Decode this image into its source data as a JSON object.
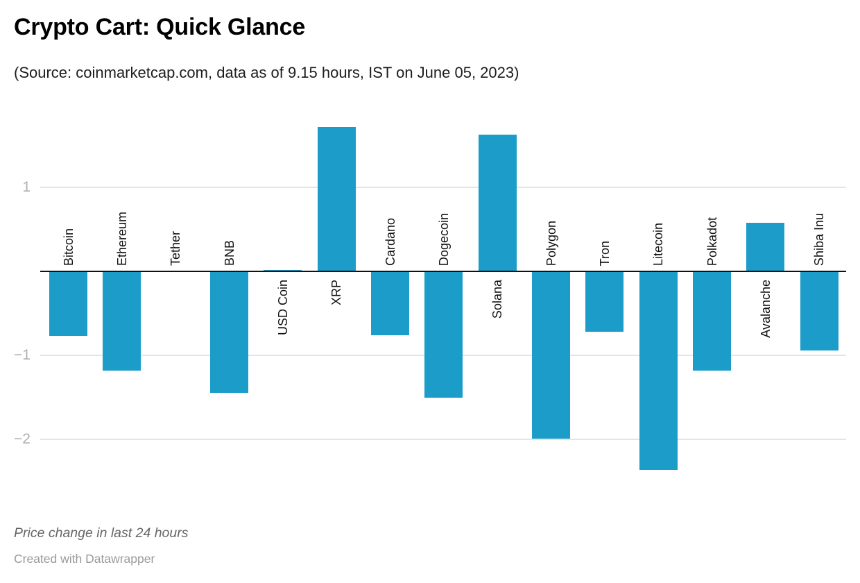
{
  "header": {
    "title": "Crypto Cart: Quick Glance",
    "subtitle": "(Source: coinmarketcap.com, data as of 9.15 hours, IST on June 05, 2023)"
  },
  "footer": {
    "note": "Price change in last 24 hours",
    "credit": "Created with Datawrapper"
  },
  "colors": {
    "bar": "#1c9dc9",
    "baseline": "#111111",
    "gridline": "#e4e4e4",
    "tick_label": "#b0b0b0",
    "bar_label": "#111111"
  },
  "chart_data": {
    "type": "bar",
    "title": "Crypto Cart: Quick Glance",
    "subtitle": "(Source: coinmarketcap.com, data as of 9.15 hours, IST on June 05, 2023)",
    "note": "Price change in last 24 hours",
    "credit": "Created with Datawrapper",
    "categories": [
      "Bitcoin",
      "Ethereum",
      "Tether",
      "BNB",
      "USD Coin",
      "XRP",
      "Cardano",
      "Dogecoin",
      "Solana",
      "Polygon",
      "Tron",
      "Litecoin",
      "Polkadot",
      "Avalanche",
      "Shiba Inu"
    ],
    "values": [
      -0.77,
      -1.18,
      0.0,
      -1.45,
      0.02,
      1.72,
      -0.76,
      -1.5,
      1.63,
      -1.99,
      -0.72,
      -2.36,
      -1.18,
      0.58,
      -0.94
    ],
    "xlabel": "",
    "ylabel": "",
    "yticks": [
      1,
      -1,
      -2
    ],
    "ytick_labels": [
      "1",
      "−1",
      "−2"
    ],
    "ylim": [
      -2.9,
      1.91
    ],
    "grid": true,
    "legend": false,
    "bar_orientation": "vertical",
    "category_label_rotation": 90
  }
}
